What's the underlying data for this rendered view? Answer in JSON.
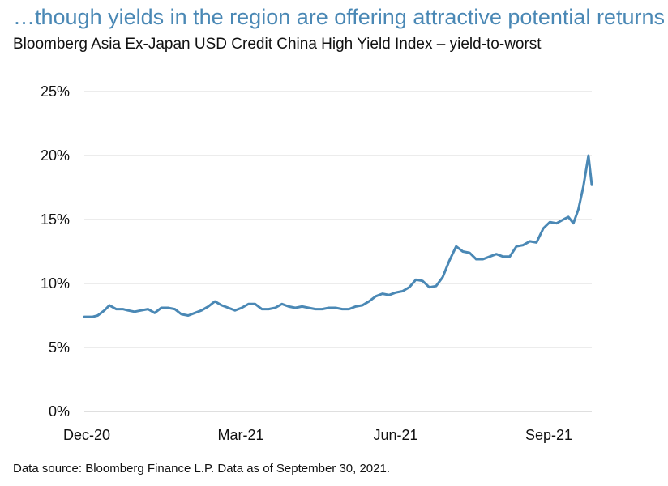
{
  "header": {
    "title": "…though yields in the region are offering attractive potential returns",
    "subtitle": "Bloomberg Asia Ex-Japan USD Credit China High Yield Index – yield-to-worst"
  },
  "footer": {
    "source": "Data source: Bloomberg Finance L.P. Data as of September 30, 2021."
  },
  "chart_data": {
    "type": "line",
    "title": "",
    "xlabel": "",
    "ylabel": "",
    "x_tick_labels": [
      "Dec-20",
      "Mar-21",
      "Jun-21",
      "Sep-21"
    ],
    "y_tick_labels": [
      "0%",
      "5%",
      "10%",
      "15%",
      "20%",
      "25%"
    ],
    "ylim": [
      0,
      25
    ],
    "xlim": [
      "2020-12-01",
      "2021-09-30"
    ],
    "grid": "horizontal",
    "legend": "none",
    "colors": {
      "line": "#4a88b5",
      "grid": "#d9d9d9",
      "axis": "#bfbfbf"
    },
    "series": [
      {
        "x": [
          "2020-12-01",
          "2020-12-06",
          "2020-12-09",
          "2020-12-13",
          "2020-12-16",
          "2020-12-20",
          "2020-12-24",
          "2020-12-27",
          "2020-12-31",
          "2021-01-04",
          "2021-01-08",
          "2021-01-12",
          "2021-01-16",
          "2021-01-20",
          "2021-01-24",
          "2021-01-28",
          "2021-02-01",
          "2021-02-05",
          "2021-02-09",
          "2021-02-13",
          "2021-02-17",
          "2021-02-21",
          "2021-02-25",
          "2021-03-01",
          "2021-03-05",
          "2021-03-09",
          "2021-03-13",
          "2021-03-17",
          "2021-03-21",
          "2021-03-25",
          "2021-03-29",
          "2021-04-02",
          "2021-04-06",
          "2021-04-10",
          "2021-04-14",
          "2021-04-18",
          "2021-04-22",
          "2021-04-26",
          "2021-04-30",
          "2021-05-04",
          "2021-05-08",
          "2021-05-12",
          "2021-05-16",
          "2021-05-20",
          "2021-05-24",
          "2021-05-28",
          "2021-06-01",
          "2021-06-05",
          "2021-06-09",
          "2021-06-13",
          "2021-06-17",
          "2021-06-21",
          "2021-06-25",
          "2021-06-29",
          "2021-07-03",
          "2021-07-07",
          "2021-07-11",
          "2021-07-15",
          "2021-07-19",
          "2021-07-23",
          "2021-07-27",
          "2021-07-31",
          "2021-08-04",
          "2021-08-08",
          "2021-08-12",
          "2021-08-16",
          "2021-08-20",
          "2021-08-24",
          "2021-08-28",
          "2021-09-01",
          "2021-09-05",
          "2021-09-09",
          "2021-09-13",
          "2021-09-16",
          "2021-09-19",
          "2021-09-22",
          "2021-09-25",
          "2021-09-28",
          "2021-09-30"
        ],
        "y": [
          7.4,
          7.4,
          7.5,
          7.9,
          8.3,
          8.0,
          8.0,
          7.9,
          7.8,
          7.9,
          8.0,
          7.7,
          8.1,
          8.1,
          8.0,
          7.6,
          7.5,
          7.7,
          7.9,
          8.2,
          8.6,
          8.3,
          8.1,
          7.9,
          8.1,
          8.4,
          8.4,
          8.0,
          8.0,
          8.1,
          8.4,
          8.2,
          8.1,
          8.2,
          8.1,
          8.0,
          8.0,
          8.1,
          8.1,
          8.0,
          8.0,
          8.2,
          8.3,
          8.6,
          9.0,
          9.2,
          9.1,
          9.3,
          9.4,
          9.7,
          10.3,
          10.2,
          9.7,
          9.8,
          10.5,
          11.8,
          12.9,
          12.5,
          12.4,
          11.9,
          11.9,
          12.1,
          12.3,
          12.1,
          12.1,
          12.9,
          13.0,
          13.3,
          13.2,
          14.3,
          14.8,
          14.7,
          15.0,
          15.2,
          14.7,
          15.8,
          17.6,
          20.0,
          17.7
        ]
      }
    ]
  }
}
